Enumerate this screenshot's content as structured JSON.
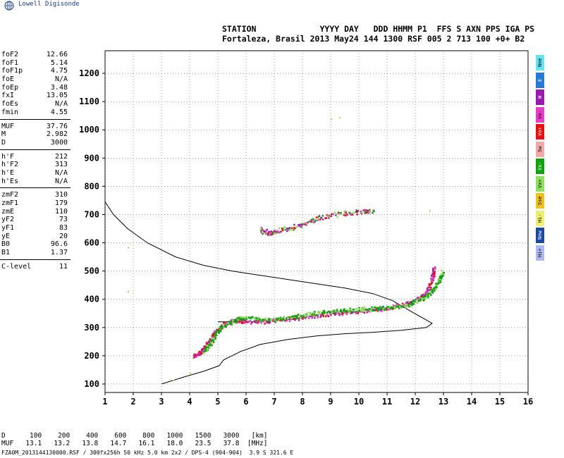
{
  "header": {
    "logo_text": "Lowell Digisonde",
    "labels_line": "STATION             YYYY DAY   DDD HHMM P1  FFS S AXN PPS IGA PS",
    "values_line": "Fortaleza, Brasil 2013 May24 144 1300 RSF 005 2 713 100 +0+ B2"
  },
  "params": {
    "group1": [
      {
        "name": "foF2",
        "value": "12.66"
      },
      {
        "name": "foF1",
        "value": "5.14"
      },
      {
        "name": "foF1p",
        "value": "4.75"
      },
      {
        "name": "foE",
        "value": "N/A"
      },
      {
        "name": "foEp",
        "value": "3.48"
      },
      {
        "name": "fxI",
        "value": "13.05"
      },
      {
        "name": "foEs",
        "value": "N/A"
      },
      {
        "name": "fmin",
        "value": "4.55"
      }
    ],
    "group2": [
      {
        "name": "MUF",
        "value": "37.76"
      },
      {
        "name": "M",
        "value": "2.982"
      },
      {
        "name": "D",
        "value": "3000"
      }
    ],
    "group3": [
      {
        "name": "h'F",
        "value": "212"
      },
      {
        "name": "h'F2",
        "value": "313"
      },
      {
        "name": "h'E",
        "value": "N/A"
      },
      {
        "name": "h'Es",
        "value": "N/A"
      }
    ],
    "group4": [
      {
        "name": "zmF2",
        "value": "310"
      },
      {
        "name": "zmF1",
        "value": "179"
      },
      {
        "name": "zmE",
        "value": "110"
      },
      {
        "name": "yF2",
        "value": "73"
      },
      {
        "name": "yF1",
        "value": "83"
      },
      {
        "name": "yE",
        "value": "20"
      },
      {
        "name": "B0",
        "value": "96.6"
      },
      {
        "name": "B1",
        "value": "1.37"
      }
    ],
    "group5": [
      {
        "name": "C-level",
        "value": "11"
      }
    ]
  },
  "legend": [
    {
      "label": "Nne",
      "color": "#66e5f0"
    },
    {
      "label": "E",
      "color": "#2878d8"
    },
    {
      "label": "W",
      "color": "#9a1ab0"
    },
    {
      "label": "Vo-",
      "color": "#e83cc8"
    },
    {
      "label": "Vo+",
      "color": "#e81010"
    },
    {
      "label": "Sw",
      "color": "#f0a8a8"
    },
    {
      "label": "Vx-",
      "color": "#12a012"
    },
    {
      "label": "Vx+",
      "color": "#90e060"
    },
    {
      "label": "Sse",
      "color": "#f0c020"
    },
    {
      "label": "Hi-",
      "color": "#f0f070"
    },
    {
      "label": "Nnw",
      "color": "#1a4aa0"
    },
    {
      "label": "Hi+",
      "color": "#b0b8f0"
    }
  ],
  "mufline": {
    "d_label": "D",
    "d_values": [
      "100",
      "200",
      "400",
      "600",
      "800",
      "1000",
      "1500",
      "3000",
      "[km]"
    ],
    "muf_label": "MUF",
    "muf_values": [
      "13.1",
      "13.2",
      "13.8",
      "14.7",
      "16.1",
      "18.0",
      "23.5",
      "37.8",
      "[MHz]"
    ]
  },
  "footer": "FZA0M_2013144130000.RSF / 300fx256h 50 kHz 5.0 km 2x2 / DPS-4 (904-904)  3.9 S 321.6 E",
  "chart_data": {
    "type": "scatter",
    "x_ticks": [
      1,
      2,
      3,
      4,
      5,
      6,
      7,
      8,
      9,
      10,
      11,
      12,
      13,
      14,
      15,
      16
    ],
    "y_ticks": [
      100,
      200,
      300,
      400,
      500,
      600,
      700,
      800,
      900,
      1000,
      1100,
      1200
    ],
    "xlim": [
      1,
      16
    ],
    "ylim": [
      70,
      1280
    ],
    "grid": true,
    "profile": [
      [
        1.0,
        745
      ],
      [
        1.3,
        700
      ],
      [
        1.8,
        650
      ],
      [
        2.5,
        600
      ],
      [
        3.5,
        550
      ],
      [
        4.5,
        520
      ],
      [
        5.5,
        500
      ],
      [
        6.5,
        485
      ],
      [
        7.5,
        470
      ],
      [
        8.5,
        455
      ],
      [
        9.5,
        440
      ],
      [
        10.5,
        420
      ],
      [
        11.2,
        395
      ],
      [
        11.8,
        360
      ],
      [
        12.6,
        315
      ],
      [
        12.4,
        300
      ],
      [
        11.5,
        290
      ],
      [
        10.5,
        283
      ],
      [
        9.5,
        278
      ],
      [
        8.5,
        270
      ],
      [
        7.5,
        258
      ],
      [
        6.5,
        240
      ],
      [
        5.8,
        215
      ],
      [
        5.2,
        185
      ],
      [
        5.05,
        165
      ],
      [
        4.5,
        145
      ],
      [
        3.8,
        125
      ],
      [
        3.0,
        100
      ]
    ],
    "o_trace": [
      [
        4.15,
        200
      ],
      [
        4.3,
        205
      ],
      [
        4.5,
        225
      ],
      [
        4.7,
        255
      ],
      [
        4.9,
        285
      ],
      [
        5.2,
        310
      ],
      [
        5.5,
        322
      ],
      [
        5.8,
        325
      ],
      [
        6.0,
        320
      ],
      [
        6.5,
        320
      ],
      [
        7.0,
        325
      ],
      [
        7.5,
        330
      ],
      [
        8.0,
        335
      ],
      [
        8.5,
        343
      ],
      [
        9.0,
        348
      ],
      [
        9.5,
        353
      ],
      [
        10.0,
        357
      ],
      [
        10.5,
        362
      ],
      [
        11.0,
        368
      ],
      [
        11.5,
        378
      ],
      [
        12.0,
        395
      ],
      [
        12.3,
        415
      ],
      [
        12.5,
        445
      ],
      [
        12.6,
        480
      ],
      [
        12.65,
        510
      ]
    ],
    "x_trace": [
      [
        4.5,
        215
      ],
      [
        4.7,
        240
      ],
      [
        4.9,
        275
      ],
      [
        5.1,
        300
      ],
      [
        5.5,
        320
      ],
      [
        5.9,
        335
      ],
      [
        6.3,
        330
      ],
      [
        6.8,
        328
      ],
      [
        7.3,
        332
      ],
      [
        7.8,
        340
      ],
      [
        8.3,
        348
      ],
      [
        8.8,
        355
      ],
      [
        9.3,
        360
      ],
      [
        9.8,
        363
      ],
      [
        10.3,
        366
      ],
      [
        10.8,
        368
      ],
      [
        11.3,
        372
      ],
      [
        11.8,
        382
      ],
      [
        12.2,
        400
      ],
      [
        12.5,
        420
      ],
      [
        12.7,
        445
      ],
      [
        12.85,
        470
      ],
      [
        12.95,
        495
      ]
    ],
    "oblique_trace": [
      [
        6.5,
        645
      ],
      [
        6.8,
        632
      ],
      [
        7.0,
        640
      ],
      [
        7.5,
        650
      ],
      [
        8.0,
        665
      ],
      [
        8.5,
        685
      ],
      [
        9.0,
        698
      ],
      [
        9.5,
        705
      ],
      [
        10.0,
        708
      ],
      [
        10.5,
        712
      ]
    ],
    "scattered_points": [
      [
        9.0,
        1040
      ],
      [
        9.3,
        1045
      ],
      [
        12.5,
        715
      ],
      [
        1.8,
        585
      ],
      [
        1.8,
        430
      ],
      [
        4.0,
        140
      ],
      [
        3.4,
        115
      ]
    ],
    "h_segment": [
      [
        5.0,
        320
      ],
      [
        6.0,
        320
      ]
    ]
  }
}
